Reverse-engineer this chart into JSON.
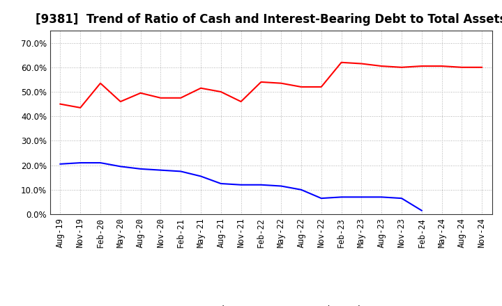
{
  "title": "[9381]  Trend of Ratio of Cash and Interest-Bearing Debt to Total Assets",
  "x_labels": [
    "Aug-19",
    "Nov-19",
    "Feb-20",
    "May-20",
    "Aug-20",
    "Nov-20",
    "Feb-21",
    "May-21",
    "Aug-21",
    "Nov-21",
    "Feb-22",
    "May-22",
    "Aug-22",
    "Nov-22",
    "Feb-23",
    "May-23",
    "Aug-23",
    "Nov-23",
    "Feb-24",
    "May-24",
    "Aug-24",
    "Nov-24"
  ],
  "cash": [
    45.0,
    43.5,
    53.5,
    46.0,
    49.5,
    47.5,
    47.5,
    51.5,
    50.0,
    46.0,
    54.0,
    53.5,
    52.0,
    52.0,
    62.0,
    61.5,
    60.5,
    60.0,
    60.5,
    60.5,
    60.0,
    60.0
  ],
  "debt": [
    20.5,
    21.0,
    21.0,
    19.5,
    18.5,
    18.0,
    17.5,
    15.5,
    12.5,
    12.0,
    12.0,
    11.5,
    10.0,
    6.5,
    7.0,
    7.0,
    7.0,
    6.5,
    1.5,
    null,
    null,
    null
  ],
  "cash_color": "#ff0000",
  "debt_color": "#0000ff",
  "background_color": "#ffffff",
  "plot_bg_color": "#ffffff",
  "grid_color": "#aaaaaa",
  "ylim": [
    0.0,
    75.0
  ],
  "yticks": [
    0.0,
    10.0,
    20.0,
    30.0,
    40.0,
    50.0,
    60.0,
    70.0
  ],
  "legend_cash": "Cash",
  "legend_debt": "Interest-Bearing Debt",
  "title_fontsize": 12,
  "axis_fontsize": 8.5
}
